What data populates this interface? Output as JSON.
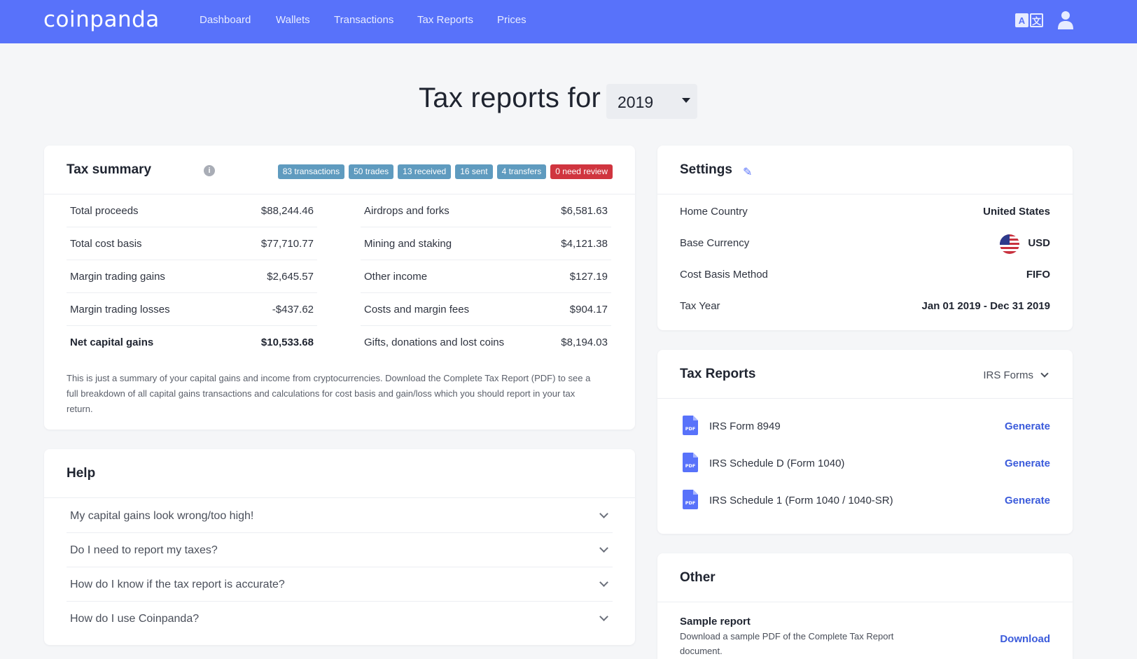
{
  "brand": {
    "logo": "coinpanda",
    "accent": "#5872fa"
  },
  "nav": {
    "links": [
      "Dashboard",
      "Wallets",
      "Transactions",
      "Tax Reports",
      "Prices"
    ],
    "icons": [
      "translate-icon",
      "user-icon"
    ],
    "translate_glyphs": [
      "A",
      "文"
    ]
  },
  "header": {
    "title": "Tax reports for",
    "year": "2019"
  },
  "tax_summary": {
    "title": "Tax summary",
    "info_glyph": "i",
    "badges": [
      {
        "label": "83 transactions",
        "color": "#5f9bbf"
      },
      {
        "label": "50 trades",
        "color": "#5f9bbf"
      },
      {
        "label": "13 received",
        "color": "#5f9bbf"
      },
      {
        "label": "16 sent",
        "color": "#5f9bbf"
      },
      {
        "label": "4 transfers",
        "color": "#5f9bbf"
      },
      {
        "label": "0 need review",
        "color": "#d0353f"
      }
    ],
    "left_rows": [
      {
        "label": "Total proceeds",
        "value": "$88,244.46"
      },
      {
        "label": "Total cost basis",
        "value": "$77,710.77"
      },
      {
        "label": "Margin trading gains",
        "value": "$2,645.57"
      },
      {
        "label": "Margin trading losses",
        "value": "-$437.62"
      },
      {
        "label": "Net capital gains",
        "value": "$10,533.68"
      }
    ],
    "right_rows": [
      {
        "label": "Airdrops and forks",
        "value": "$6,581.63"
      },
      {
        "label": "Mining and staking",
        "value": "$4,121.38"
      },
      {
        "label": "Other income",
        "value": "$127.19"
      },
      {
        "label": "Costs and margin fees",
        "value": "$904.17"
      },
      {
        "label": "Gifts, donations and lost coins",
        "value": "$8,194.03"
      }
    ],
    "note": "This is just a summary of your capital gains and income from cryptocurrencies. Download the Complete Tax Report (PDF) to see a full breakdown of all capital gains transactions and calculations for cost basis and gain/loss which you should report in your tax return."
  },
  "help": {
    "title": "Help",
    "items": [
      "My capital gains look wrong/too high!",
      "Do I need to report my taxes?",
      "How do I know if the tax report is accurate?",
      "How do I use Coinpanda?"
    ]
  },
  "settings": {
    "title": "Settings",
    "edit_glyph": "✎",
    "rows": [
      {
        "label": "Home Country",
        "value": "United States"
      },
      {
        "label": "Base Currency",
        "value": "USD"
      },
      {
        "label": "Cost Basis Method",
        "value": "FIFO"
      },
      {
        "label": "Tax Year",
        "value": "Jan 01 2019 - Dec 31 2019"
      }
    ]
  },
  "tax_reports": {
    "title": "Tax Reports",
    "dropdown": "IRS Forms",
    "pdf_label": "PDF",
    "items": [
      {
        "name": "IRS Form 8949",
        "action": "Generate"
      },
      {
        "name": "IRS Schedule D (Form 1040)",
        "action": "Generate"
      },
      {
        "name": "IRS Schedule 1 (Form 1040 / 1040-SR)",
        "action": "Generate"
      }
    ]
  },
  "other": {
    "title": "Other",
    "sample_title": "Sample report",
    "sample_desc": "Download a sample PDF of the Complete Tax Report document.",
    "action": "Download"
  }
}
